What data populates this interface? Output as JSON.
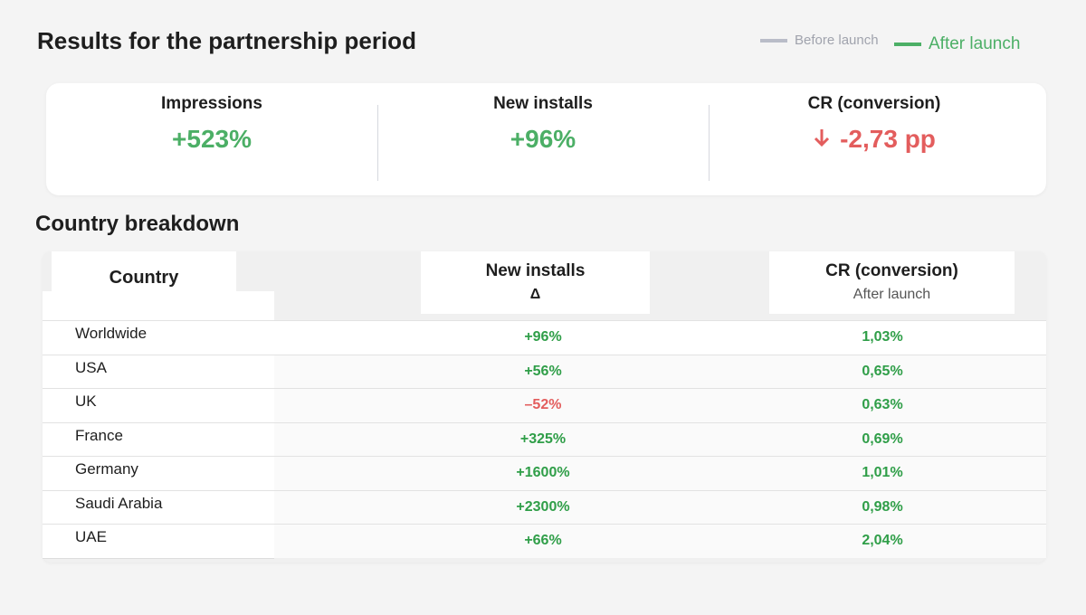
{
  "header": {
    "title": "Results for the partnership period",
    "legend": [
      {
        "label": "Before launch",
        "color": "#b9bcc8"
      },
      {
        "label": "After launch",
        "color": "#4caf66"
      }
    ]
  },
  "kpis": [
    {
      "label": "Impressions",
      "value": "+523%",
      "color": "#4caf66"
    },
    {
      "label": "New installs",
      "value": "+96%",
      "color": "#4caf66"
    },
    {
      "label": "CR (conversion)",
      "value": "-2,73 pp",
      "color": "#e35d5d"
    }
  ],
  "section": {
    "title": "Country breakdown"
  },
  "table": {
    "header": {
      "country": "Country",
      "installs": "New installs",
      "installs_sub": "Δ",
      "cr": "CR (conversion)",
      "cr_sub": "After launch"
    },
    "rows": [
      {
        "country": "Worldwide",
        "installs": "+96%",
        "installs_color": "#2f9e48",
        "cr": "1,03%"
      },
      {
        "country": "USA",
        "installs": "+56%",
        "installs_color": "#2f9e48",
        "cr": "0,65%"
      },
      {
        "country": "UK",
        "installs": "–52%",
        "installs_color": "#e35d5d",
        "cr": "0,63%"
      },
      {
        "country": "France",
        "installs": "+325%",
        "installs_color": "#2f9e48",
        "cr": "0,69%"
      },
      {
        "country": "Germany",
        "installs": "+1600%",
        "installs_color": "#2f9e48",
        "cr": "1,01%"
      },
      {
        "country": "Saudi Arabia",
        "installs": "+2300%",
        "installs_color": "#2f9e48",
        "cr": "0,98%"
      },
      {
        "country": "UAE",
        "installs": "+66%",
        "installs_color": "#2f9e48",
        "cr": "2,04%"
      }
    ]
  }
}
